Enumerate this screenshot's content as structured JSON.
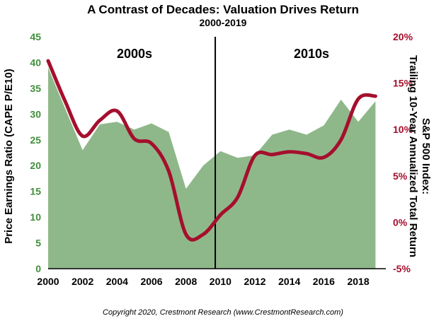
{
  "chart_data": {
    "type": "area",
    "title": "A Contrast of Decades: Valuation Drives Return",
    "subtitle": "2000-2019",
    "ylabel_left": "Price Earnings Ratio (CAPE P/E10)",
    "ylabel_right_line1": "S&P 500 Index:",
    "ylabel_right_line2": "Trailing 10-Year Annualized Total Return",
    "x_ticks": [
      "2000",
      "2002",
      "2004",
      "2006",
      "2008",
      "2010",
      "2012",
      "2014",
      "2016",
      "2018"
    ],
    "y_left_ticks": [
      "0",
      "5",
      "10",
      "15",
      "20",
      "25",
      "30",
      "35",
      "40",
      "45"
    ],
    "y_right_ticks": [
      "-5%",
      "0%",
      "5%",
      "10%",
      "15%",
      "20%"
    ],
    "xlim": [
      2000,
      2019.6
    ],
    "ylim_left": [
      0,
      45
    ],
    "ylim_right": [
      -5,
      20
    ],
    "divider_year": 2009.7,
    "annotations": [
      "2000s",
      "2010s"
    ],
    "colors": {
      "left_axis": "#3f8f3a",
      "right_axis": "#a50f2d",
      "area_fill": "#8fb88a",
      "line": "#a50f2d",
      "divider": "#000000"
    },
    "series": [
      {
        "type": "area",
        "axis": "left",
        "x": [
          2000,
          2001,
          2002,
          2003,
          2004,
          2005,
          2006,
          2007,
          2008,
          2009,
          2010,
          2011,
          2012,
          2013,
          2014,
          2015,
          2016,
          2017,
          2018,
          2019
        ],
        "values": [
          39,
          31,
          23,
          28,
          28.5,
          27,
          28.2,
          26.5,
          15.5,
          20,
          22.8,
          21.5,
          22,
          26,
          27,
          26,
          27.8,
          32.8,
          28.5,
          32.5
        ]
      },
      {
        "type": "line",
        "axis": "right",
        "x": [
          2000,
          2001,
          2002,
          2003,
          2004,
          2005,
          2006,
          2007,
          2008,
          2009,
          2010,
          2011,
          2012,
          2013,
          2014,
          2015,
          2016,
          2017,
          2018,
          2019
        ],
        "values": [
          17.4,
          13,
          9.3,
          11,
          12,
          9,
          8.5,
          5.5,
          -1.3,
          -1.3,
          0.8,
          2.7,
          7.2,
          7.3,
          7.6,
          7.4,
          7,
          8.9,
          13.3,
          13.6
        ]
      }
    ]
  },
  "footer": "Copyright 2020, Crestmont Research (www.CrestmontResearch.com)"
}
